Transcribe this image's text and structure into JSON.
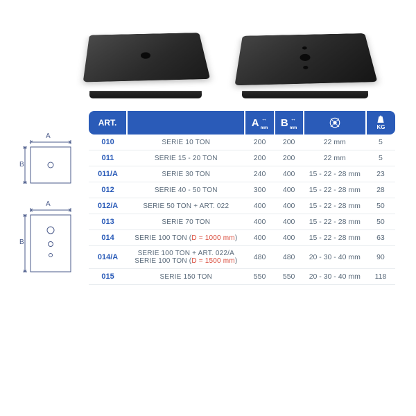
{
  "header": {
    "art_label": "ART.",
    "dim_a_label": "A",
    "dim_b_label": "B",
    "dim_unit": "mm",
    "weight_label": "KG"
  },
  "diagrams": {
    "dim_a": "A",
    "dim_b": "B"
  },
  "colors": {
    "brand_blue": "#2a5bb8",
    "text_gray": "#5a6a7a",
    "border_gray": "#e8ecef",
    "d_note_red": "#d94a3a",
    "diagram_stroke": "#4a5a8a"
  },
  "rows": [
    {
      "art": "010",
      "desc": "SERIE 10 TON",
      "a": "200",
      "b": "200",
      "hole": "22 mm",
      "kg": "5"
    },
    {
      "art": "011",
      "desc": "SERIE 15 - 20 TON",
      "a": "200",
      "b": "200",
      "hole": "22 mm",
      "kg": "5"
    },
    {
      "art": "011/A",
      "desc": "SERIE 30 TON",
      "a": "240",
      "b": "400",
      "hole": "15 - 22 - 28 mm",
      "kg": "23"
    },
    {
      "art": "012",
      "desc": "SERIE 40 - 50 TON",
      "a": "300",
      "b": "400",
      "hole": "15 - 22 - 28 mm",
      "kg": "28"
    },
    {
      "art": "012/A",
      "desc": "SERIE 50 TON + ART. 022",
      "a": "400",
      "b": "400",
      "hole": "15 - 22 - 28 mm",
      "kg": "50"
    },
    {
      "art": "013",
      "desc": "SERIE 70 TON",
      "a": "400",
      "b": "400",
      "hole": "15 - 22 - 28 mm",
      "kg": "50"
    },
    {
      "art": "014",
      "desc_html": "SERIE 100 TON (<span class=\"d-note\">D = 1000 mm</span>)",
      "a": "400",
      "b": "400",
      "hole": "15 - 22 - 28 mm",
      "kg": "63"
    },
    {
      "art": "014/A",
      "desc_html": "SERIE 100 TON + ART. 022/A<br>SERIE 100 TON (<span class=\"d-note\">D = 1500 mm</span>)",
      "a": "480",
      "b": "480",
      "hole": "20 - 30 - 40 mm",
      "kg": "90"
    },
    {
      "art": "015",
      "desc": "SERIE 150 TON",
      "a": "550",
      "b": "550",
      "hole": "20 - 30 - 40 mm",
      "kg": "118"
    }
  ]
}
